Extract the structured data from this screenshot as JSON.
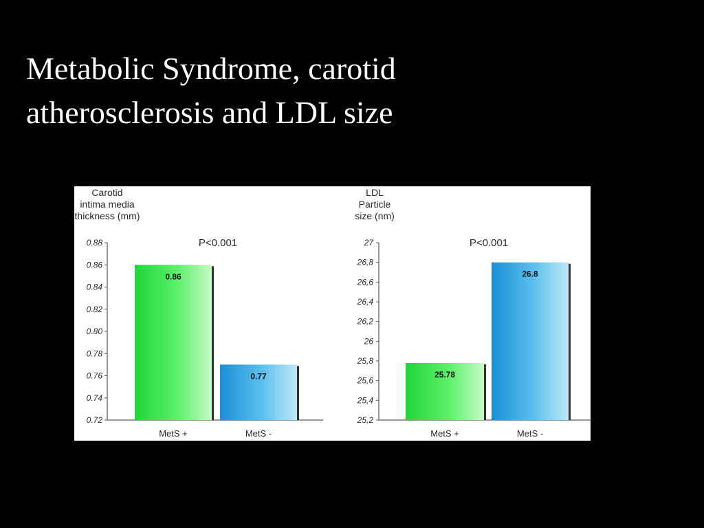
{
  "slide": {
    "title_line1": "Metabolic Syndrome, carotid",
    "title_line2": "atherosclerosis and LDL size"
  },
  "colors": {
    "background": "#000000",
    "title_text": "#ffffff",
    "panel_background": "#ffffff",
    "green_bar": "#39e84a",
    "blue_bar": "#2ea3e0"
  },
  "chart_data": [
    {
      "type": "bar",
      "title": "",
      "ylabel_lines": [
        "Carotid",
        "intima media",
        "thickness (mm)"
      ],
      "xlabel": "",
      "annotation": "P<0.001",
      "categories": [
        "MetS +",
        "MetS -"
      ],
      "values": [
        0.86,
        0.77
      ],
      "value_labels": [
        "0.86",
        "0.77"
      ],
      "bar_colors": [
        "green",
        "blue"
      ],
      "ylim": [
        0.72,
        0.88
      ],
      "yticks": [
        0.72,
        0.74,
        0.76,
        0.78,
        0.8,
        0.82,
        0.84,
        0.86,
        0.88
      ],
      "ytick_labels": [
        "0.72",
        "0.74",
        "0.76",
        "0.78",
        "0.80",
        "0.82",
        "0.84",
        "0.86",
        "0.88"
      ],
      "grid": false
    },
    {
      "type": "bar",
      "title": "",
      "ylabel_lines": [
        "LDL",
        "Particle",
        "size (nm)"
      ],
      "xlabel": "",
      "annotation": "P<0.001",
      "categories": [
        "MetS +",
        "MetS -"
      ],
      "values": [
        25.78,
        26.8
      ],
      "value_labels": [
        "25.78",
        "26.8"
      ],
      "bar_colors": [
        "green",
        "blue"
      ],
      "ylim": [
        25.2,
        27
      ],
      "yticks": [
        25.2,
        25.4,
        25.6,
        25.8,
        26,
        26.2,
        26.4,
        26.6,
        26.8,
        27
      ],
      "ytick_labels": [
        "25,2",
        "25,4",
        "25,6",
        "25,8",
        "26",
        "26,2",
        "26,4",
        "26,6",
        "26,8",
        "27"
      ],
      "grid": false
    }
  ]
}
